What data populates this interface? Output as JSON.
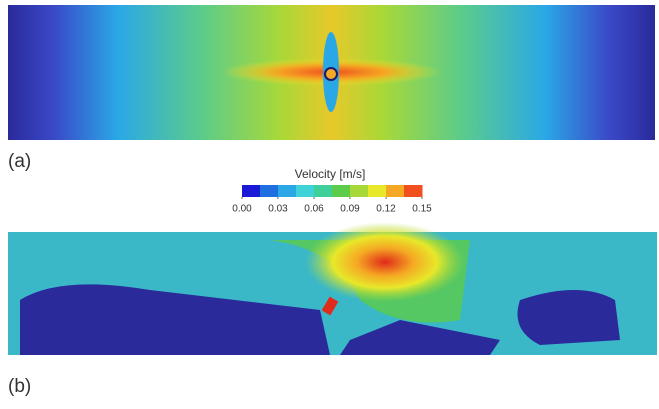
{
  "chart_data": {
    "type": "colorbar",
    "title": "Velocity [m/s]",
    "colors": [
      "#1a1ad6",
      "#1f6fe0",
      "#2aa8e6",
      "#3fd3d8",
      "#3fcf9a",
      "#5ccc4a",
      "#a8d838",
      "#e8e82a",
      "#f5a823",
      "#f0501e"
    ],
    "xlim": [
      0,
      0.15
    ],
    "xticks": [
      {
        "value": 0,
        "label": "0.00"
      },
      {
        "value": 0.03,
        "label": "0.03"
      },
      {
        "value": 0.06,
        "label": "0.06"
      },
      {
        "value": 0.09,
        "label": "0.09"
      },
      {
        "value": 0.12,
        "label": "0.12"
      },
      {
        "value": 0.15,
        "label": "0.15"
      }
    ]
  },
  "panels": [
    {
      "label": "(a)"
    },
    {
      "label": "(b)"
    }
  ]
}
